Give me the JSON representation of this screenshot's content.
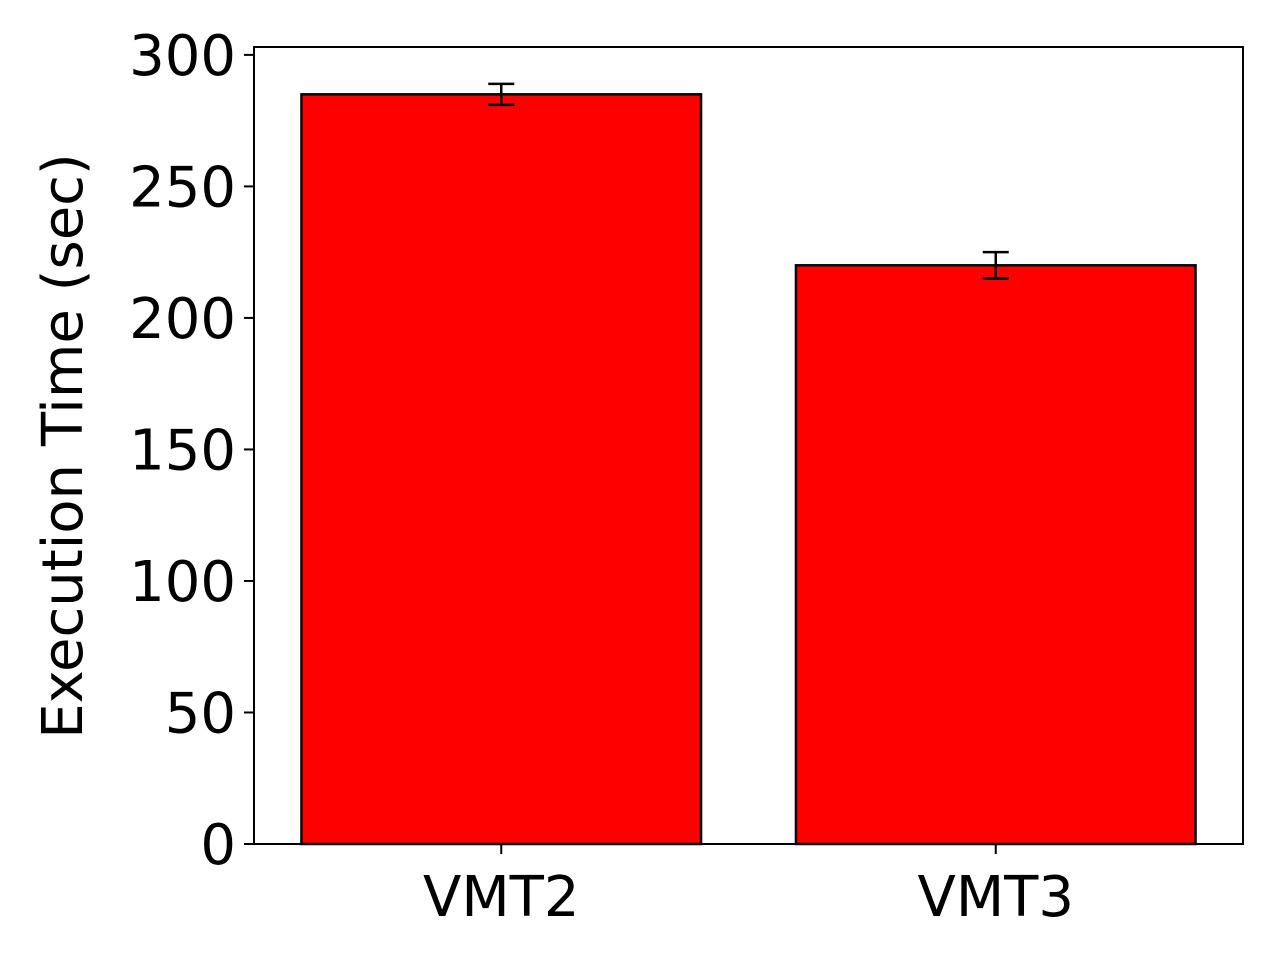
{
  "chart_data": {
    "type": "bar",
    "title": "",
    "xlabel": "",
    "ylabel": "Execution Time (sec)",
    "categories": [
      "VMT2",
      "VMT3"
    ],
    "values": [
      285,
      220
    ],
    "errors": [
      4,
      5
    ],
    "ylim": [
      0,
      303
    ],
    "yticks": [
      0,
      50,
      100,
      150,
      200,
      250,
      300
    ],
    "grid": false,
    "legend": "none",
    "colors": {
      "bar_fill": "#ff0000",
      "bar_edge": "#000000",
      "error_bar": "#000000",
      "axes": "#000000",
      "background": "#ffffff"
    }
  }
}
